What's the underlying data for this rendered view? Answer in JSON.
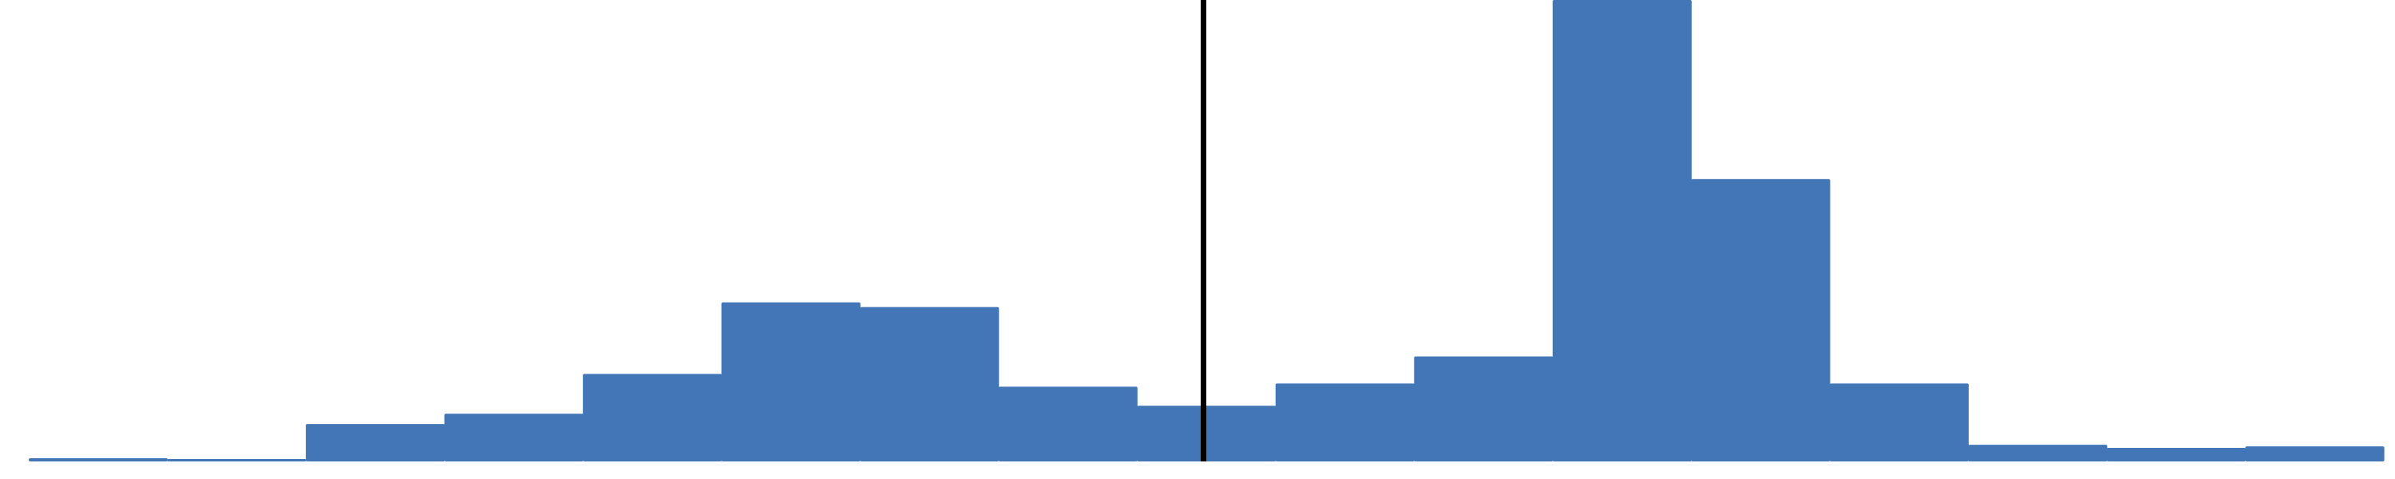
{
  "colors": {
    "bar": "#4276B6",
    "marker_line": "#000000",
    "background": "#FFFFFF"
  },
  "chart_data": {
    "type": "bar",
    "title": "",
    "xlabel": "",
    "ylabel": "",
    "grid": false,
    "legend": "none",
    "bin_count": 17,
    "values": [
      4,
      3,
      47,
      60,
      110,
      200,
      194,
      94,
      70,
      98,
      132,
      580,
      355,
      98,
      21,
      17,
      19
    ],
    "ylim": [
      0,
      580
    ],
    "reference_line": {
      "after_bar_index": 8,
      "fraction_within_bar": 0.48
    }
  }
}
